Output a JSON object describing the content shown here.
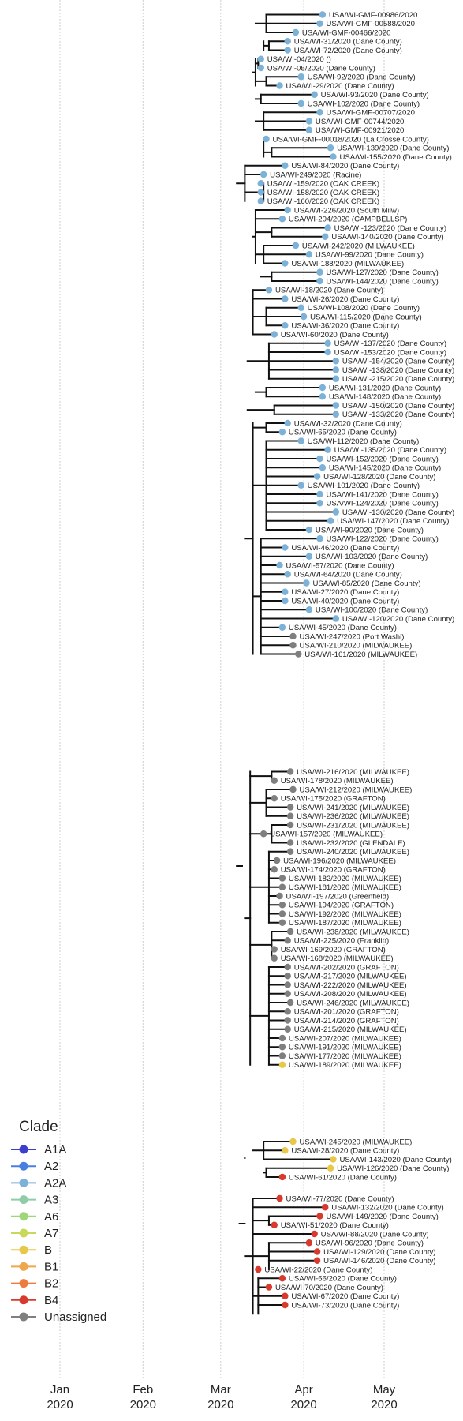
{
  "chart_data": {
    "type": "phylogenetic-tree",
    "x_axis": {
      "label": "",
      "ticks": [
        {
          "month": "Jan",
          "year": "2020",
          "date": "2020-01-01"
        },
        {
          "month": "Feb",
          "year": "2020",
          "date": "2020-02-01"
        },
        {
          "month": "Mar",
          "year": "2020",
          "date": "2020-03-01"
        },
        {
          "month": "Apr",
          "year": "2020",
          "date": "2020-04-01"
        },
        {
          "month": "May",
          "year": "2020",
          "date": "2020-05-01"
        }
      ],
      "grid": true
    },
    "legend": {
      "title": "Clade",
      "position": "bottom-left",
      "items": [
        {
          "label": "A1A",
          "color": "#3b3fc9"
        },
        {
          "label": "A2",
          "color": "#4a7fe0"
        },
        {
          "label": "A2A",
          "color": "#7cb1d8"
        },
        {
          "label": "A3",
          "color": "#8fcca8"
        },
        {
          "label": "A6",
          "color": "#9fd67a"
        },
        {
          "label": "A7",
          "color": "#c8d85a"
        },
        {
          "label": "B",
          "color": "#e8c84a"
        },
        {
          "label": "B1",
          "color": "#f0a64a"
        },
        {
          "label": "B2",
          "color": "#ec7b3c"
        },
        {
          "label": "B4",
          "color": "#d93a2e"
        },
        {
          "label": "Unassigned",
          "color": "#7f7f7f"
        }
      ]
    },
    "tips": [
      {
        "label": "USA/WI-GMF-00986/2020",
        "date": "2020-04-08",
        "clade": "A2A"
      },
      {
        "label": "USA/WI-GMF-00588/2020",
        "date": "2020-04-07",
        "clade": "A2A"
      },
      {
        "label": "USA/WI-GMF-00466/2020",
        "date": "2020-03-29",
        "clade": "A2A"
      },
      {
        "label": "USA/WI-31/2020 (Dane County)",
        "date": "2020-03-26",
        "clade": "A2A"
      },
      {
        "label": "USA/WI-72/2020 (Dane County)",
        "date": "2020-03-26",
        "clade": "A2A"
      },
      {
        "label": "USA/WI-04/2020 ()",
        "date": "2020-03-16",
        "clade": "A2A"
      },
      {
        "label": "USA/WI-05/2020 (Dane County)",
        "date": "2020-03-16",
        "clade": "A2A"
      },
      {
        "label": "USA/WI-92/2020 (Dane County)",
        "date": "2020-03-31",
        "clade": "A2A"
      },
      {
        "label": "USA/WI-29/2020 (Dane County)",
        "date": "2020-03-23",
        "clade": "A2A"
      },
      {
        "label": "USA/WI-93/2020 (Dane County)",
        "date": "2020-04-05",
        "clade": "A2A"
      },
      {
        "label": "USA/WI-102/2020 (Dane County)",
        "date": "2020-03-31",
        "clade": "A2A"
      },
      {
        "label": "USA/WI-GMF-00707/2020",
        "date": "2020-04-07",
        "clade": "A2A"
      },
      {
        "label": "USA/WI-GMF-00744/2020",
        "date": "2020-04-03",
        "clade": "A2A"
      },
      {
        "label": "USA/WI-GMF-00921/2020",
        "date": "2020-04-03",
        "clade": "A2A"
      },
      {
        "label": "USA/WI-GMF-00018/2020 (La Crosse County)",
        "date": "2020-03-18",
        "clade": "A2A"
      },
      {
        "label": "USA/WI-139/2020 (Dane County)",
        "date": "2020-04-11",
        "clade": "A2A"
      },
      {
        "label": "USA/WI-155/2020 (Dane County)",
        "date": "2020-04-12",
        "clade": "A2A"
      },
      {
        "label": "USA/WI-84/2020 (Dane County)",
        "date": "2020-03-25",
        "clade": "A2A"
      },
      {
        "label": "USA/WI-249/2020 (Racine)",
        "date": "2020-03-17",
        "clade": "A2A"
      },
      {
        "label": "USA/WI-159/2020 (OAK CREEK)",
        "date": "2020-03-16",
        "clade": "A2A"
      },
      {
        "label": "USA/WI-158/2020 (OAK CREEK)",
        "date": "2020-03-16",
        "clade": "A2A"
      },
      {
        "label": "USA/WI-160/2020 (OAK CREEK)",
        "date": "2020-03-16",
        "clade": "A2A"
      },
      {
        "label": "USA/WI-226/2020 (South Milw)",
        "date": "2020-03-26",
        "clade": "A2A"
      },
      {
        "label": "USA/WI-204/2020 (CAMPBELLSP)",
        "date": "2020-03-24",
        "clade": "A2A"
      },
      {
        "label": "USA/WI-123/2020 (Dane County)",
        "date": "2020-04-10",
        "clade": "A2A"
      },
      {
        "label": "USA/WI-140/2020 (Dane County)",
        "date": "2020-04-09",
        "clade": "A2A"
      },
      {
        "label": "USA/WI-242/2020 (MILWAUKEE)",
        "date": "2020-03-29",
        "clade": "A2A"
      },
      {
        "label": "USA/WI-99/2020 (Dane County)",
        "date": "2020-04-03",
        "clade": "A2A"
      },
      {
        "label": "USA/WI-188/2020 (MILWAUKEE)",
        "date": "2020-03-25",
        "clade": "A2A"
      },
      {
        "label": "USA/WI-127/2020 (Dane County)",
        "date": "2020-04-07",
        "clade": "A2A"
      },
      {
        "label": "USA/WI-144/2020 (Dane County)",
        "date": "2020-04-07",
        "clade": "A2A"
      },
      {
        "label": "USA/WI-18/2020 (Dane County)",
        "date": "2020-03-19",
        "clade": "A2A"
      },
      {
        "label": "USA/WI-26/2020 (Dane County)",
        "date": "2020-03-25",
        "clade": "A2A"
      },
      {
        "label": "USA/WI-108/2020 (Dane County)",
        "date": "2020-03-31",
        "clade": "A2A"
      },
      {
        "label": "USA/WI-115/2020 (Dane County)",
        "date": "2020-04-01",
        "clade": "A2A"
      },
      {
        "label": "USA/WI-36/2020 (Dane County)",
        "date": "2020-03-25",
        "clade": "A2A"
      },
      {
        "label": "USA/WI-60/2020 (Dane County)",
        "date": "2020-03-21",
        "clade": "A2A"
      },
      {
        "label": "USA/WI-137/2020 (Dane County)",
        "date": "2020-04-10",
        "clade": "A2A"
      },
      {
        "label": "USA/WI-153/2020 (Dane County)",
        "date": "2020-04-10",
        "clade": "A2A"
      },
      {
        "label": "USA/WI-154/2020 (Dane County)",
        "date": "2020-04-13",
        "clade": "A2A"
      },
      {
        "label": "USA/WI-138/2020 (Dane County)",
        "date": "2020-04-13",
        "clade": "A2A"
      },
      {
        "label": "USA/WI-215/2020 (Dane County)",
        "date": "2020-04-13",
        "clade": "A2A"
      },
      {
        "label": "USA/WI-131/2020 (Dane County)",
        "date": "2020-04-08",
        "clade": "A2A"
      },
      {
        "label": "USA/WI-148/2020 (Dane County)",
        "date": "2020-04-08",
        "clade": "A2A"
      },
      {
        "label": "USA/WI-150/2020 (Dane County)",
        "date": "2020-04-13",
        "clade": "A2A"
      },
      {
        "label": "USA/WI-133/2020 (Dane County)",
        "date": "2020-04-13",
        "clade": "A2A"
      },
      {
        "label": "USA/WI-32/2020 (Dane County)",
        "date": "2020-03-26",
        "clade": "A2A"
      },
      {
        "label": "USA/WI-65/2020 (Dane County)",
        "date": "2020-03-24",
        "clade": "A2A"
      },
      {
        "label": "USA/WI-112/2020 (Dane County)",
        "date": "2020-03-31",
        "clade": "A2A"
      },
      {
        "label": "USA/WI-135/2020 (Dane County)",
        "date": "2020-04-10",
        "clade": "A2A"
      },
      {
        "label": "USA/WI-152/2020 (Dane County)",
        "date": "2020-04-07",
        "clade": "A2A"
      },
      {
        "label": "USA/WI-145/2020 (Dane County)",
        "date": "2020-04-08",
        "clade": "A2A"
      },
      {
        "label": "USA/WI-128/2020 (Dane County)",
        "date": "2020-04-06",
        "clade": "A2A"
      },
      {
        "label": "USA/WI-101/2020 (Dane County)",
        "date": "2020-03-31",
        "clade": "A2A"
      },
      {
        "label": "USA/WI-141/2020 (Dane County)",
        "date": "2020-04-07",
        "clade": "A2A"
      },
      {
        "label": "USA/WI-124/2020 (Dane County)",
        "date": "2020-04-07",
        "clade": "A2A"
      },
      {
        "label": "USA/WI-130/2020 (Dane County)",
        "date": "2020-04-13",
        "clade": "A2A"
      },
      {
        "label": "USA/WI-147/2020 (Dane County)",
        "date": "2020-04-11",
        "clade": "A2A"
      },
      {
        "label": "USA/WI-90/2020 (Dane County)",
        "date": "2020-04-03",
        "clade": "A2A"
      },
      {
        "label": "USA/WI-122/2020 (Dane County)",
        "date": "2020-04-07",
        "clade": "A2A"
      },
      {
        "label": "USA/WI-46/2020 (Dane County)",
        "date": "2020-03-25",
        "clade": "A2A"
      },
      {
        "label": "USA/WI-103/2020 (Dane County)",
        "date": "2020-04-03",
        "clade": "A2A"
      },
      {
        "label": "USA/WI-57/2020 (Dane County)",
        "date": "2020-03-23",
        "clade": "A2A"
      },
      {
        "label": "USA/WI-64/2020 (Dane County)",
        "date": "2020-03-26",
        "clade": "A2A"
      },
      {
        "label": "USA/WI-85/2020 (Dane County)",
        "date": "2020-04-02",
        "clade": "A2A"
      },
      {
        "label": "USA/WI-27/2020 (Dane County)",
        "date": "2020-03-25",
        "clade": "A2A"
      },
      {
        "label": "USA/WI-40/2020 (Dane County)",
        "date": "2020-03-25",
        "clade": "A2A"
      },
      {
        "label": "USA/WI-100/2020 (Dane County)",
        "date": "2020-04-03",
        "clade": "A2A"
      },
      {
        "label": "USA/WI-120/2020 (Dane County)",
        "date": "2020-04-13",
        "clade": "A2A"
      },
      {
        "label": "USA/WI-45/2020 (Dane County)",
        "date": "2020-03-24",
        "clade": "A2A"
      },
      {
        "label": "USA/WI-247/2020 (Port Washi)",
        "date": "2020-03-28",
        "clade": "Unassigned"
      },
      {
        "label": "USA/WI-210/2020 (MILWAUKEE)",
        "date": "2020-03-28",
        "clade": "Unassigned"
      },
      {
        "label": "USA/WI-161/2020 (MILWAUKEE)",
        "date": "2020-03-30",
        "clade": "Unassigned"
      },
      {
        "label": "USA/WI-216/2020 (MILWAUKEE)",
        "date": "2020-03-27",
        "clade": "Unassigned"
      },
      {
        "label": "USA/WI-178/2020 (MILWAUKEE)",
        "date": "2020-03-21",
        "clade": "Unassigned"
      },
      {
        "label": "USA/WI-212/2020 (MILWAUKEE)",
        "date": "2020-03-28",
        "clade": "Unassigned"
      },
      {
        "label": "USA/WI-175/2020 (GRAFTON)",
        "date": "2020-03-21",
        "clade": "Unassigned"
      },
      {
        "label": "USA/WI-241/2020 (MILWAUKEE)",
        "date": "2020-03-27",
        "clade": "Unassigned"
      },
      {
        "label": "USA/WI-236/2020 (MILWAUKEE)",
        "date": "2020-03-27",
        "clade": "Unassigned"
      },
      {
        "label": "USA/WI-231/2020 (MILWAUKEE)",
        "date": "2020-03-27",
        "clade": "Unassigned"
      },
      {
        "label": "USA/WI-157/2020 (MILWAUKEE)",
        "date": "2020-03-17",
        "clade": "Unassigned"
      },
      {
        "label": "USA/WI-232/2020 (GLENDALE)",
        "date": "2020-03-27",
        "clade": "Unassigned"
      },
      {
        "label": "USA/WI-240/2020 (MILWAUKEE)",
        "date": "2020-03-27",
        "clade": "Unassigned"
      },
      {
        "label": "USA/WI-196/2020 (MILWAUKEE)",
        "date": "2020-03-22",
        "clade": "Unassigned"
      },
      {
        "label": "USA/WI-174/2020 (GRAFTON)",
        "date": "2020-03-21",
        "clade": "Unassigned"
      },
      {
        "label": "USA/WI-182/2020 (MILWAUKEE)",
        "date": "2020-03-24",
        "clade": "Unassigned"
      },
      {
        "label": "USA/WI-181/2020 (MILWAUKEE)",
        "date": "2020-03-24",
        "clade": "Unassigned"
      },
      {
        "label": "USA/WI-197/2020 (Greenfield)",
        "date": "2020-03-23",
        "clade": "Unassigned"
      },
      {
        "label": "USA/WI-194/2020 (GRAFTON)",
        "date": "2020-03-24",
        "clade": "Unassigned"
      },
      {
        "label": "USA/WI-192/2020 (MILWAUKEE)",
        "date": "2020-03-24",
        "clade": "Unassigned"
      },
      {
        "label": "USA/WI-187/2020 (MILWAUKEE)",
        "date": "2020-03-24",
        "clade": "Unassigned"
      },
      {
        "label": "USA/WI-238/2020 (MILWAUKEE)",
        "date": "2020-03-27",
        "clade": "Unassigned"
      },
      {
        "label": "USA/WI-225/2020 (Franklin)",
        "date": "2020-03-26",
        "clade": "Unassigned"
      },
      {
        "label": "USA/WI-169/2020 (GRAFTON)",
        "date": "2020-03-21",
        "clade": "Unassigned"
      },
      {
        "label": "USA/WI-168/2020 (MILWAUKEE)",
        "date": "2020-03-21",
        "clade": "Unassigned"
      },
      {
        "label": "USA/WI-202/2020 (GRAFTON)",
        "date": "2020-03-26",
        "clade": "Unassigned"
      },
      {
        "label": "USA/WI-217/2020 (MILWAUKEE)",
        "date": "2020-03-26",
        "clade": "Unassigned"
      },
      {
        "label": "USA/WI-222/2020 (MILWAUKEE)",
        "date": "2020-03-26",
        "clade": "Unassigned"
      },
      {
        "label": "USA/WI-208/2020 (MILWAUKEE)",
        "date": "2020-03-26",
        "clade": "Unassigned"
      },
      {
        "label": "USA/WI-246/2020 (MILWAUKEE)",
        "date": "2020-03-27",
        "clade": "Unassigned"
      },
      {
        "label": "USA/WI-201/2020 (GRAFTON)",
        "date": "2020-03-26",
        "clade": "Unassigned"
      },
      {
        "label": "USA/WI-214/2020 (GRAFTON)",
        "date": "2020-03-26",
        "clade": "Unassigned"
      },
      {
        "label": "USA/WI-215/2020 (MILWAUKEE)",
        "date": "2020-03-26",
        "clade": "Unassigned"
      },
      {
        "label": "USA/WI-207/2020 (MILWAUKEE)",
        "date": "2020-03-24",
        "clade": "Unassigned"
      },
      {
        "label": "USA/WI-191/2020 (MILWAUKEE)",
        "date": "2020-03-24",
        "clade": "Unassigned"
      },
      {
        "label": "USA/WI-177/2020 (MILWAUKEE)",
        "date": "2020-03-24",
        "clade": "Unassigned"
      },
      {
        "label": "USA/WI-189/2020 (MILWAUKEE)",
        "date": "2020-03-24",
        "clade": "B"
      },
      {
        "label": "USA/WI-245/2020 (MILWAUKEE)",
        "date": "2020-03-28",
        "clade": "B"
      },
      {
        "label": "USA/WI-28/2020 (Dane County)",
        "date": "2020-03-25",
        "clade": "B"
      },
      {
        "label": "USA/WI-143/2020 (Dane County)",
        "date": "2020-04-12",
        "clade": "B"
      },
      {
        "label": "USA/WI-126/2020 (Dane County)",
        "date": "2020-04-11",
        "clade": "B"
      },
      {
        "label": "USA/WI-61/2020 (Dane County)",
        "date": "2020-03-24",
        "clade": "B4"
      },
      {
        "label": "USA/WI-77/2020 (Dane County)",
        "date": "2020-03-23",
        "clade": "B4"
      },
      {
        "label": "USA/WI-132/2020 (Dane County)",
        "date": "2020-04-09",
        "clade": "B4"
      },
      {
        "label": "USA/WI-149/2020 (Dane County)",
        "date": "2020-04-07",
        "clade": "B4"
      },
      {
        "label": "USA/WI-51/2020 (Dane County)",
        "date": "2020-03-21",
        "clade": "B4"
      },
      {
        "label": "USA/WI-88/2020 (Dane County)",
        "date": "2020-04-05",
        "clade": "B4"
      },
      {
        "label": "USA/WI-96/2020 (Dane County)",
        "date": "2020-04-03",
        "clade": "B4"
      },
      {
        "label": "USA/WI-129/2020 (Dane County)",
        "date": "2020-04-06",
        "clade": "B4"
      },
      {
        "label": "USA/WI-146/2020 (Dane County)",
        "date": "2020-04-06",
        "clade": "B4"
      },
      {
        "label": "USA/WI-22/2020 (Dane County)",
        "date": "2020-03-15",
        "clade": "B4"
      },
      {
        "label": "USA/WI-66/2020 (Dane County)",
        "date": "2020-03-24",
        "clade": "B4"
      },
      {
        "label": "USA/WI-70/2020 (Dane County)",
        "date": "2020-03-19",
        "clade": "B4"
      },
      {
        "label": "USA/WI-67/2020 (Dane County)",
        "date": "2020-03-25",
        "clade": "B4"
      },
      {
        "label": "USA/WI-73/2020 (Dane County)",
        "date": "2020-03-25",
        "clade": "B4"
      }
    ]
  }
}
